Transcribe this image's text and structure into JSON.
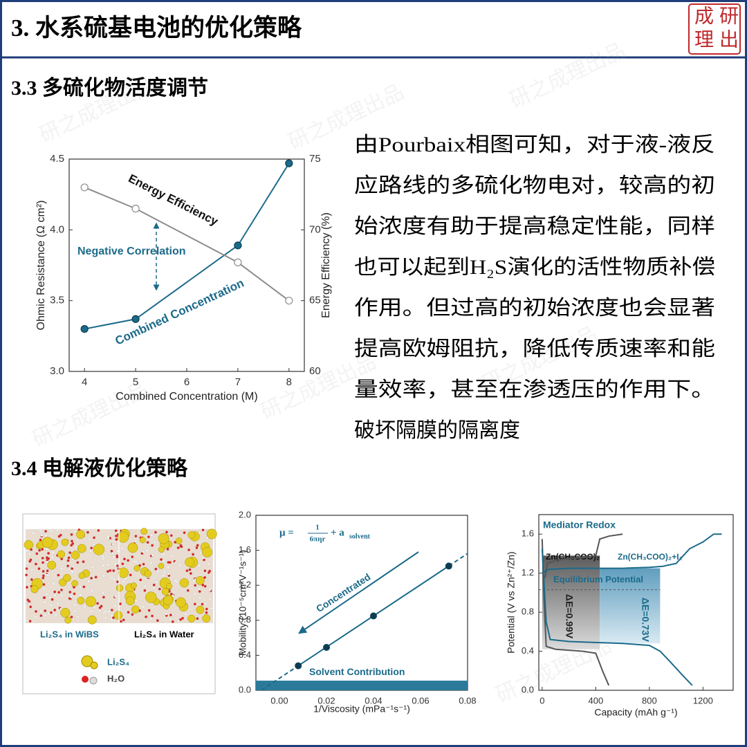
{
  "header": {
    "title": "3. 水系硫基电池的优化策略",
    "logo": [
      "成",
      "研",
      "理",
      "出"
    ]
  },
  "watermark": "研之成理出品",
  "sections": [
    {
      "heading": "3.3 多硫化物活度调节",
      "paragraph": [
        "由Pourbaix相图可知，对于液-液反",
        "应路线的多硫化物电对，较高的初",
        "始浓度有助于提高稳定性能，同样",
        "也可以起到H₂S演化的活性物质补偿",
        "作用。但过高的初始浓度也会显著",
        "提高欧姆阻抗，降低传质速率和能",
        "量效率，甚至在渗透压的作用下。",
        "破坏隔膜的隔离度"
      ]
    },
    {
      "heading": "3.4 电解液优化策略"
    }
  ],
  "figure": {
    "labels": [
      "Li₂S₄ in WiBS",
      "Li₂S₄ in Water"
    ],
    "legend": [
      "Li₂S₄",
      "H₂O"
    ]
  },
  "chart_data": [
    {
      "type": "line",
      "x": [
        4,
        5,
        7,
        8
      ],
      "xlim": [
        3.7,
        8.3
      ],
      "xticks": [
        4,
        5,
        6,
        7,
        8
      ],
      "ylim": [
        3,
        4.5
      ],
      "yticks": [
        {
          "value": 3,
          "label": "3.0"
        },
        {
          "value": 3.5,
          "label": "3.5"
        },
        {
          "value": 4,
          "label": "4.0"
        },
        {
          "value": 4.5,
          "label": "4.5"
        }
      ],
      "y2lim": [
        60,
        75
      ],
      "y2ticks": [
        60,
        65,
        70,
        75
      ],
      "xlabel": "Combined Concentration (M)",
      "ylabel": "Ohmic Resistance (Ω cm²)",
      "y2label": "Energy Efficiency (%)",
      "series": [
        {
          "name": "Combined Concentration",
          "color": "#1b6a8a",
          "marker": "filled",
          "values": [
            3.3,
            3.37,
            3.89,
            4.47
          ]
        },
        {
          "name": "Energy Efficiency",
          "color": "#8c8c8c",
          "marker": "open",
          "axis": "y2",
          "values": [
            73,
            71.5,
            67.7,
            65
          ]
        }
      ],
      "annotations": [
        "Negative Correlation"
      ]
    },
    {
      "type": "scatter",
      "x": [
        0.008,
        0.02,
        0.04,
        0.072
      ],
      "values": [
        0.28,
        0.49,
        0.85,
        1.42
      ],
      "color": "#1b6a8a",
      "xlim": [
        -0.01,
        0.08
      ],
      "xticks": [
        {
          "value": 0,
          "label": "0.00"
        },
        {
          "value": 0.02,
          "label": "0.02"
        },
        {
          "value": 0.04,
          "label": "0.04"
        },
        {
          "value": 0.06,
          "label": "0.06"
        },
        {
          "value": 0.08,
          "label": "0.08"
        }
      ],
      "ylim": [
        0,
        2
      ],
      "yticks": [
        {
          "value": 0,
          "label": "0.0"
        },
        {
          "value": 0.4,
          "label": "0.4"
        },
        {
          "value": 0.8,
          "label": "0.8"
        },
        {
          "value": 1.2,
          "label": "1.2"
        },
        {
          "value": 1.6,
          "label": "1.6"
        },
        {
          "value": 2,
          "label": "2.0"
        }
      ],
      "xlabel": "1/Viscosity (mPa⁻¹s⁻¹)",
      "ylabel": "Mobility (10⁻⁵cm²V⁻¹s⁻¹)",
      "band": {
        "label": "Solvent Contribution",
        "value": 0.11
      },
      "annotations": [
        "Concentrated"
      ],
      "formula": {
        "lhs": "μ =",
        "num": "1",
        "den": "6πηr",
        "rhs": "+ a",
        "sub": "solvent"
      }
    },
    {
      "type": "line",
      "xlim": [
        -25,
        1425
      ],
      "xticks": [
        0,
        400,
        800,
        1200
      ],
      "ylim": [
        0,
        1.8
      ],
      "yticks": [
        {
          "value": 0,
          "label": "0.0"
        },
        {
          "value": 0.4,
          "label": "0.4"
        },
        {
          "value": 0.8,
          "label": "0.8"
        },
        {
          "value": 1.2,
          "label": "1.2"
        },
        {
          "value": 1.6,
          "label": "1.6"
        }
      ],
      "xlabel": "Capacity (mAh g⁻¹)",
      "ylabel": "Potential (V vs Zn²⁺/Zn)",
      "series": [
        {
          "name": "Zn(CH₃COO)₂",
          "color": "#555555",
          "x": [
            20,
            40,
            100,
            200,
            300,
            400,
            430,
            500,
            600,
            null,
            0,
            15,
            30,
            100,
            200,
            300,
            400,
            450,
            497
          ],
          "values": [
            1.15,
            1.3,
            1.33,
            1.35,
            1.36,
            1.38,
            1.55,
            1.58,
            1.6,
            null,
            1.55,
            0.9,
            0.45,
            0.42,
            0.41,
            0.4,
            0.38,
            0.2,
            0.05
          ]
        },
        {
          "name": "Zn(CH₃COO)₂+I₂",
          "color": "#1b6a8a",
          "x": [
            0,
            50,
            200,
            400,
            600,
            800,
            900,
            1000,
            1100,
            1200,
            1280,
            1340,
            null,
            0,
            30,
            60,
            200,
            400,
            600,
            800,
            880,
            950,
            1050,
            1120
          ],
          "values": [
            1.2,
            1.24,
            1.25,
            1.25,
            1.25,
            1.26,
            1.27,
            1.3,
            1.45,
            1.52,
            1.6,
            1.6,
            null,
            1.45,
            0.7,
            0.52,
            0.5,
            0.49,
            0.48,
            0.46,
            0.4,
            0.3,
            0.15,
            0.05
          ]
        }
      ],
      "regions": [
        {
          "label": "ΔE=0.99V",
          "x": [
            0,
            430
          ],
          "y": [
            0.42,
            1.38
          ]
        },
        {
          "label": "ΔE=0.73V",
          "x": [
            430,
            880
          ],
          "y": [
            0.48,
            1.25
          ]
        }
      ],
      "reference": {
        "label": "Equilibrium Potential",
        "value": 1.03
      },
      "annotations": [
        "Mediator Redox"
      ]
    }
  ]
}
